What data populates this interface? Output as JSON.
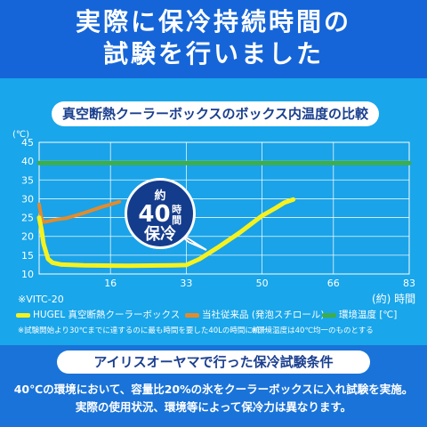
{
  "header": {
    "title_line1": "実際に保冷持続時間の",
    "title_line2": "試験を行いました"
  },
  "chart_data": {
    "type": "line",
    "title": "真空断熱クーラーボックスのボックス内温度の比較",
    "ylabel": "(℃)",
    "xlabel": "(約) 時間",
    "ylim": [
      10,
      45
    ],
    "xlim": [
      0,
      83
    ],
    "yticks": [
      10,
      15,
      20,
      25,
      30,
      35,
      40,
      45
    ],
    "xticks": [
      16,
      33,
      50,
      66,
      83
    ],
    "grid": true,
    "series": [
      {
        "name": "HUGEL 真空断熱クーラーボックス",
        "color": "#f6f21e",
        "x": [
          0,
          0.5,
          1,
          2,
          3,
          5,
          10,
          20,
          30,
          33,
          36,
          40,
          45,
          50,
          53,
          55,
          57
        ],
        "y": [
          25,
          22,
          18,
          14,
          13,
          12.5,
          12.3,
          12.2,
          12.3,
          12.4,
          14,
          17,
          21,
          25.5,
          27.5,
          29,
          29.8
        ]
      },
      {
        "name": "当社従来品 (発泡スチロール)",
        "color": "#e38b2c",
        "x": [
          0,
          0.5,
          1,
          2,
          4,
          6,
          8,
          10,
          12,
          14,
          16,
          18
        ],
        "y": [
          28.5,
          25,
          23.8,
          24,
          24.5,
          24.8,
          25.5,
          26.2,
          27,
          27.8,
          28.5,
          29.2
        ]
      },
      {
        "name": "環境温度 [℃]",
        "color": "#3dae4a",
        "x": [
          0,
          83
        ],
        "y": [
          39.5,
          39.5
        ]
      }
    ],
    "annotation": {
      "line1": "約",
      "line2_num": "40",
      "line2_unit": "時間",
      "line3": "保冷"
    }
  },
  "footnote_model": "※VITC-20",
  "legend": [
    {
      "label": "HUGEL 真空断熱クーラーボックス",
      "color": "#f6f21e"
    },
    {
      "label": "当社従来品 (発泡スチロール)",
      "color": "#e38b2c"
    },
    {
      "label": "環境温度 [℃]",
      "color": "#3dae4a"
    }
  ],
  "notes": {
    "note1": "※試験開始より30℃までに達するのに最も時間を要した40Lの時間に統一",
    "note2": "※環境温度は40℃均一のものとする"
  },
  "conditions": {
    "heading": "アイリスオーヤマで行った保冷試験条件",
    "line1": "40℃の環境において、容量比20%の氷をクーラーボックスに入れ試験を実施。",
    "line2": "実際の使用状況、環境等によって保冷力は異なります。"
  }
}
